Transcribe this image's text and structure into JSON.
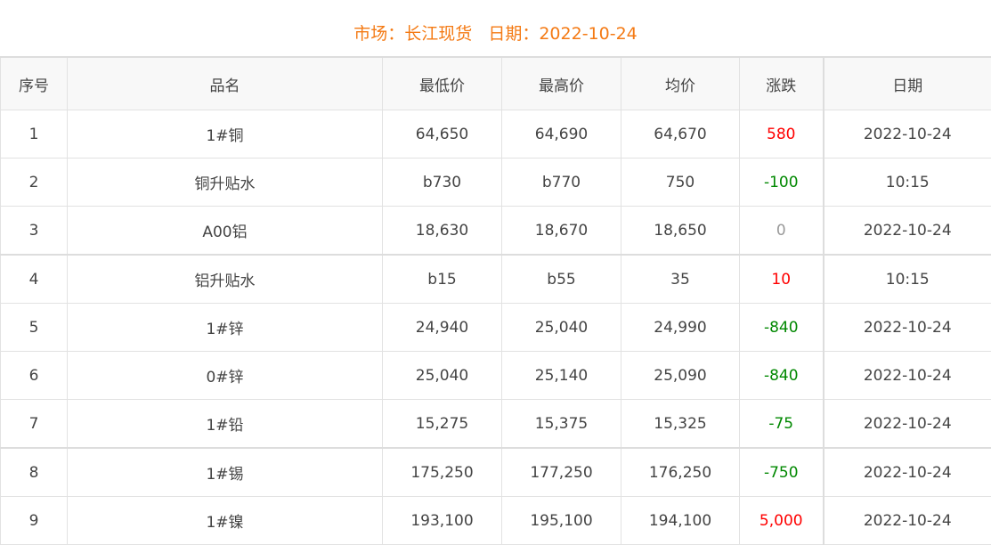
{
  "header": {
    "title": "市场：长江现货   日期：2022-10-24"
  },
  "colors": {
    "title": "#f47a14",
    "up": "#ff0000",
    "down": "#008800",
    "flat": "#999999"
  },
  "table": {
    "columns": [
      "序号",
      "品名",
      "最低价",
      "最高价",
      "均价",
      "涨跌",
      "日期"
    ],
    "rows": [
      {
        "no": "1",
        "name": "1#铜",
        "low": "64,650",
        "high": "64,690",
        "avg": "64,670",
        "change": "580",
        "trend": "up",
        "date": "2022-10-24"
      },
      {
        "no": "2",
        "name": "铜升贴水",
        "low": "b730",
        "high": "b770",
        "avg": "750",
        "change": "-100",
        "trend": "down",
        "date": "10:15"
      },
      {
        "no": "3",
        "name": "A00铝",
        "low": "18,630",
        "high": "18,670",
        "avg": "18,650",
        "change": "0",
        "trend": "flat",
        "date": "2022-10-24"
      },
      {
        "no": "4",
        "name": "铝升贴水",
        "low": "b15",
        "high": "b55",
        "avg": "35",
        "change": "10",
        "trend": "up",
        "date": "10:15"
      },
      {
        "no": "5",
        "name": "1#锌",
        "low": "24,940",
        "high": "25,040",
        "avg": "24,990",
        "change": "-840",
        "trend": "down",
        "date": "2022-10-24"
      },
      {
        "no": "6",
        "name": "0#锌",
        "low": "25,040",
        "high": "25,140",
        "avg": "25,090",
        "change": "-840",
        "trend": "down",
        "date": "2022-10-24"
      },
      {
        "no": "7",
        "name": "1#铅",
        "low": "15,275",
        "high": "15,375",
        "avg": "15,325",
        "change": "-75",
        "trend": "down",
        "date": "2022-10-24"
      },
      {
        "no": "8",
        "name": "1#锡",
        "low": "175,250",
        "high": "177,250",
        "avg": "176,250",
        "change": "-750",
        "trend": "down",
        "date": "2022-10-24"
      },
      {
        "no": "9",
        "name": "1#镍",
        "low": "193,100",
        "high": "195,100",
        "avg": "194,100",
        "change": "5,000",
        "trend": "up",
        "date": "2022-10-24"
      }
    ]
  }
}
